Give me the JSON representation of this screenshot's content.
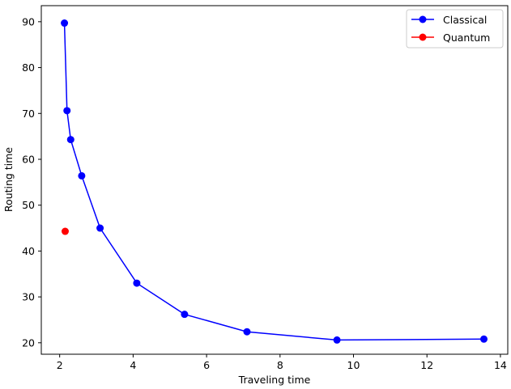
{
  "chart_data": {
    "type": "line",
    "xlabel": "Traveling time",
    "ylabel": "Routing time",
    "xlim": [
      1.5,
      14.2
    ],
    "ylim": [
      17.5,
      93.5
    ],
    "x_ticks": [
      2,
      4,
      6,
      8,
      10,
      12,
      14
    ],
    "y_ticks": [
      20,
      30,
      40,
      50,
      60,
      70,
      80,
      90
    ],
    "x_tick_labels": [
      "2",
      "4",
      "6",
      "8",
      "10",
      "12",
      "14"
    ],
    "y_tick_labels": [
      "20",
      "30",
      "40",
      "50",
      "60",
      "70",
      "80",
      "90"
    ],
    "grid": false,
    "legend_position": "top-right",
    "series": [
      {
        "name": "Classical",
        "color": "#0000ff",
        "marker": "circle",
        "points": [
          {
            "x": 2.13,
            "y": 89.7
          },
          {
            "x": 2.2,
            "y": 70.6
          },
          {
            "x": 2.3,
            "y": 64.3
          },
          {
            "x": 2.6,
            "y": 56.4
          },
          {
            "x": 3.1,
            "y": 45.0
          },
          {
            "x": 4.1,
            "y": 33.0
          },
          {
            "x": 5.4,
            "y": 26.2
          },
          {
            "x": 7.1,
            "y": 22.4
          },
          {
            "x": 9.55,
            "y": 20.6
          },
          {
            "x": 13.55,
            "y": 20.8
          }
        ]
      },
      {
        "name": "Quantum",
        "color": "#ff0000",
        "marker": "circle",
        "points": [
          {
            "x": 2.15,
            "y": 44.3
          }
        ]
      }
    ]
  }
}
